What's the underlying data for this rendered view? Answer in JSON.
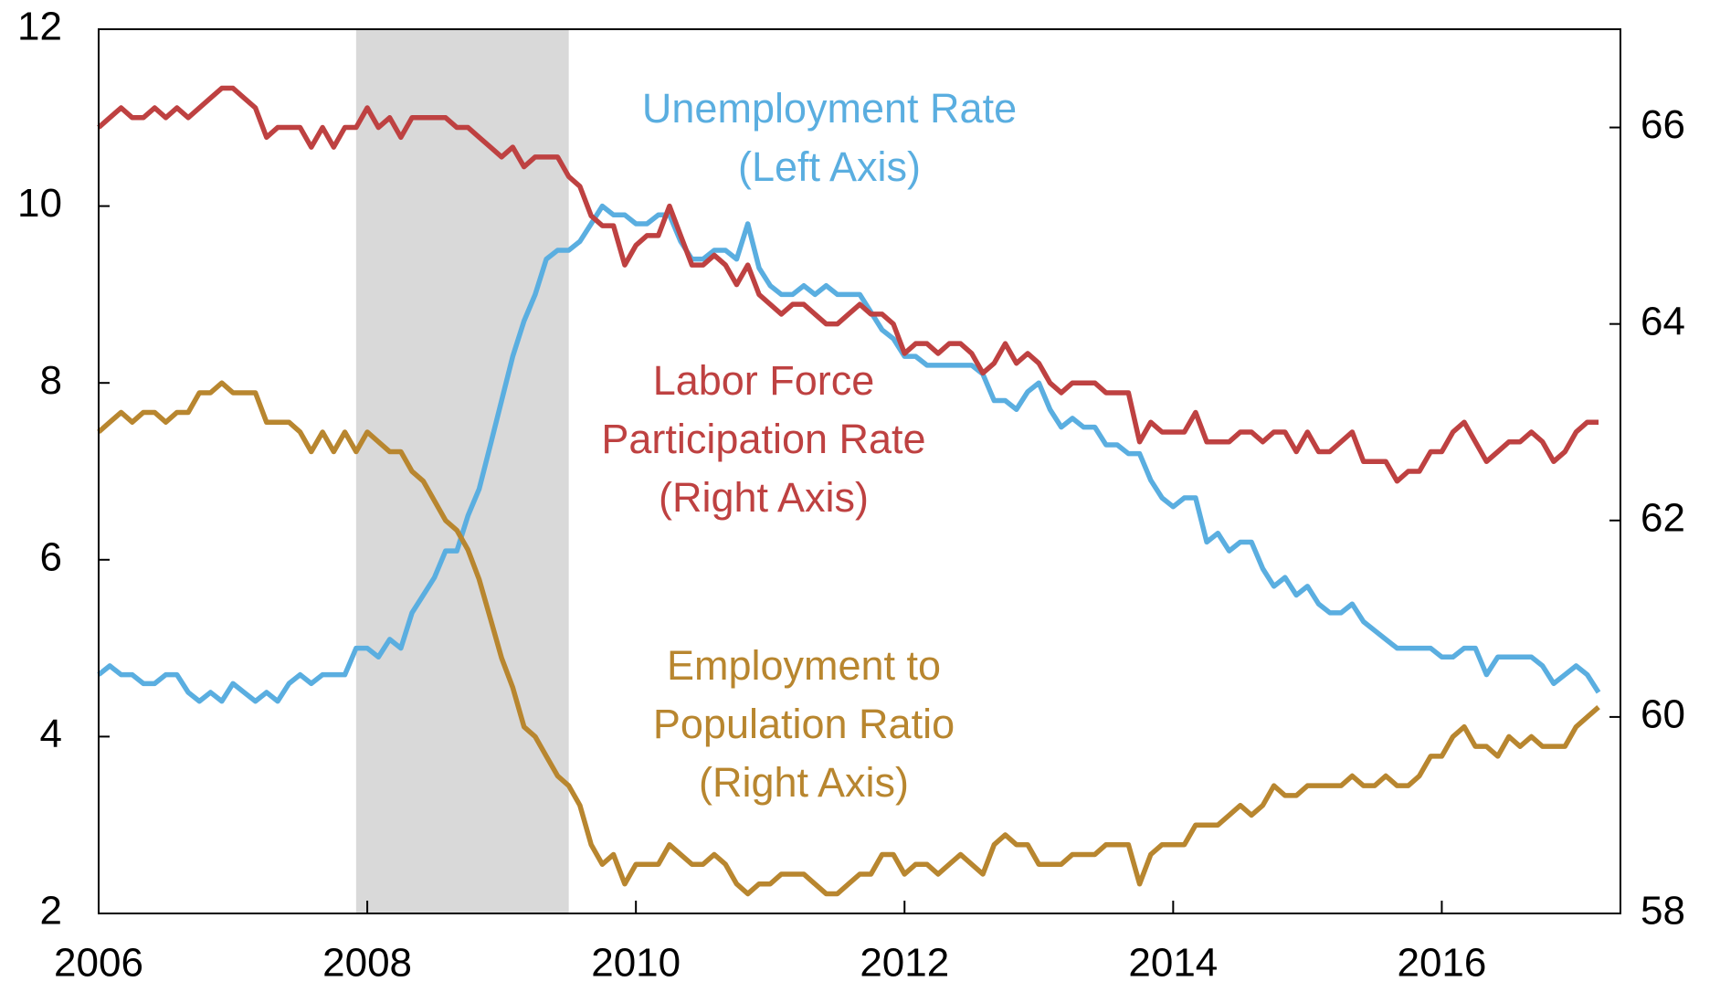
{
  "chart_data": {
    "type": "line",
    "x": [
      2006,
      2006.083,
      2006.167,
      2006.25,
      2006.333,
      2006.417,
      2006.5,
      2006.583,
      2006.667,
      2006.75,
      2006.833,
      2006.917,
      2007,
      2007.083,
      2007.167,
      2007.25,
      2007.333,
      2007.417,
      2007.5,
      2007.583,
      2007.667,
      2007.75,
      2007.833,
      2007.917,
      2008,
      2008.083,
      2008.167,
      2008.25,
      2008.333,
      2008.417,
      2008.5,
      2008.583,
      2008.667,
      2008.75,
      2008.833,
      2008.917,
      2009,
      2009.083,
      2009.167,
      2009.25,
      2009.333,
      2009.417,
      2009.5,
      2009.583,
      2009.667,
      2009.75,
      2009.833,
      2009.917,
      2010,
      2010.083,
      2010.167,
      2010.25,
      2010.333,
      2010.417,
      2010.5,
      2010.583,
      2010.667,
      2010.75,
      2010.833,
      2010.917,
      2011,
      2011.083,
      2011.167,
      2011.25,
      2011.333,
      2011.417,
      2011.5,
      2011.583,
      2011.667,
      2011.75,
      2011.833,
      2011.917,
      2012,
      2012.083,
      2012.167,
      2012.25,
      2012.333,
      2012.417,
      2012.5,
      2012.583,
      2012.667,
      2012.75,
      2012.833,
      2012.917,
      2013,
      2013.083,
      2013.167,
      2013.25,
      2013.333,
      2013.417,
      2013.5,
      2013.583,
      2013.667,
      2013.75,
      2013.833,
      2013.917,
      2014,
      2014.083,
      2014.167,
      2014.25,
      2014.333,
      2014.417,
      2014.5,
      2014.583,
      2014.667,
      2014.75,
      2014.833,
      2014.917,
      2015,
      2015.083,
      2015.167,
      2015.25,
      2015.333,
      2015.417,
      2015.5,
      2015.583,
      2015.667,
      2015.75,
      2015.833,
      2015.917,
      2016,
      2016.083,
      2016.167,
      2016.25,
      2016.333,
      2016.417,
      2016.5,
      2016.583,
      2016.667,
      2016.75,
      2016.833,
      2016.917,
      2017,
      2017.083,
      2017.167
    ],
    "series": [
      {
        "name": "Unemployment Rate",
        "color": "#5aaee0",
        "axis": "y",
        "values": [
          4.7,
          4.8,
          4.7,
          4.7,
          4.6,
          4.6,
          4.7,
          4.7,
          4.5,
          4.4,
          4.5,
          4.4,
          4.6,
          4.5,
          4.4,
          4.5,
          4.4,
          4.6,
          4.7,
          4.6,
          4.7,
          4.7,
          4.7,
          5.0,
          5.0,
          4.9,
          5.1,
          5.0,
          5.4,
          5.6,
          5.8,
          6.1,
          6.1,
          6.5,
          6.8,
          7.3,
          7.8,
          8.3,
          8.7,
          9.0,
          9.4,
          9.5,
          9.5,
          9.6,
          9.8,
          10.0,
          9.9,
          9.9,
          9.8,
          9.8,
          9.9,
          9.9,
          9.6,
          9.4,
          9.4,
          9.5,
          9.5,
          9.4,
          9.8,
          9.3,
          9.1,
          9.0,
          9.0,
          9.1,
          9.0,
          9.1,
          9.0,
          9.0,
          9.0,
          8.8,
          8.6,
          8.5,
          8.3,
          8.3,
          8.2,
          8.2,
          8.2,
          8.2,
          8.2,
          8.1,
          7.8,
          7.8,
          7.7,
          7.9,
          8.0,
          7.7,
          7.5,
          7.6,
          7.5,
          7.5,
          7.3,
          7.3,
          7.2,
          7.2,
          6.9,
          6.7,
          6.6,
          6.7,
          6.7,
          6.2,
          6.3,
          6.1,
          6.2,
          6.2,
          5.9,
          5.7,
          5.8,
          5.6,
          5.7,
          5.5,
          5.4,
          5.4,
          5.5,
          5.3,
          5.2,
          5.1,
          5.0,
          5.0,
          5.0,
          5.0,
          4.9,
          4.9,
          5.0,
          5.0,
          4.7,
          4.9,
          4.9,
          4.9,
          4.9,
          4.8,
          4.6,
          4.7,
          4.8,
          4.7,
          4.5
        ]
      },
      {
        "name": "Labor Force Participation Rate",
        "color": "#be4141",
        "axis": "y2",
        "values": [
          66.0,
          66.1,
          66.2,
          66.1,
          66.1,
          66.2,
          66.1,
          66.2,
          66.1,
          66.2,
          66.3,
          66.4,
          66.4,
          66.3,
          66.2,
          65.9,
          66.0,
          66.0,
          66.0,
          65.8,
          66.0,
          65.8,
          66.0,
          66.0,
          66.2,
          66.0,
          66.1,
          65.9,
          66.1,
          66.1,
          66.1,
          66.1,
          66.0,
          66.0,
          65.9,
          65.8,
          65.7,
          65.8,
          65.6,
          65.7,
          65.7,
          65.7,
          65.5,
          65.4,
          65.1,
          65.0,
          65.0,
          64.6,
          64.8,
          64.9,
          64.9,
          65.2,
          64.9,
          64.6,
          64.6,
          64.7,
          64.6,
          64.4,
          64.6,
          64.3,
          64.2,
          64.1,
          64.2,
          64.2,
          64.1,
          64.0,
          64.0,
          64.1,
          64.2,
          64.1,
          64.1,
          64.0,
          63.7,
          63.8,
          63.8,
          63.7,
          63.8,
          63.8,
          63.7,
          63.5,
          63.6,
          63.8,
          63.6,
          63.7,
          63.6,
          63.4,
          63.3,
          63.4,
          63.4,
          63.4,
          63.3,
          63.3,
          63.3,
          62.8,
          63.0,
          62.9,
          62.9,
          62.9,
          63.1,
          62.8,
          62.8,
          62.8,
          62.9,
          62.9,
          62.8,
          62.9,
          62.9,
          62.7,
          62.9,
          62.7,
          62.7,
          62.8,
          62.9,
          62.6,
          62.6,
          62.6,
          62.4,
          62.5,
          62.5,
          62.7,
          62.7,
          62.9,
          63.0,
          62.8,
          62.6,
          62.7,
          62.8,
          62.8,
          62.9,
          62.8,
          62.6,
          62.7,
          62.9,
          63.0,
          63.0
        ]
      },
      {
        "name": "Employment to Population Ratio",
        "color": "#b8862f",
        "axis": "y2",
        "values": [
          62.9,
          63.0,
          63.1,
          63.0,
          63.1,
          63.1,
          63.0,
          63.1,
          63.1,
          63.3,
          63.3,
          63.4,
          63.3,
          63.3,
          63.3,
          63.0,
          63.0,
          63.0,
          62.9,
          62.7,
          62.9,
          62.7,
          62.9,
          62.7,
          62.9,
          62.8,
          62.7,
          62.7,
          62.5,
          62.4,
          62.2,
          62.0,
          61.9,
          61.7,
          61.4,
          61.0,
          60.6,
          60.3,
          59.9,
          59.8,
          59.6,
          59.4,
          59.3,
          59.1,
          58.7,
          58.5,
          58.6,
          58.3,
          58.5,
          58.5,
          58.5,
          58.7,
          58.6,
          58.5,
          58.5,
          58.6,
          58.5,
          58.3,
          58.2,
          58.3,
          58.3,
          58.4,
          58.4,
          58.4,
          58.3,
          58.2,
          58.2,
          58.3,
          58.4,
          58.4,
          58.6,
          58.6,
          58.4,
          58.5,
          58.5,
          58.4,
          58.5,
          58.6,
          58.5,
          58.4,
          58.7,
          58.8,
          58.7,
          58.7,
          58.5,
          58.5,
          58.5,
          58.6,
          58.6,
          58.6,
          58.7,
          58.7,
          58.7,
          58.3,
          58.6,
          58.7,
          58.7,
          58.7,
          58.9,
          58.9,
          58.9,
          59.0,
          59.1,
          59.0,
          59.1,
          59.3,
          59.2,
          59.2,
          59.3,
          59.3,
          59.3,
          59.3,
          59.4,
          59.3,
          59.3,
          59.4,
          59.3,
          59.3,
          59.4,
          59.6,
          59.6,
          59.8,
          59.9,
          59.7,
          59.7,
          59.6,
          59.8,
          59.7,
          59.8,
          59.7,
          59.7,
          59.7,
          59.9,
          60.0,
          60.1
        ]
      }
    ],
    "annotations": [
      {
        "lines": [
          "Unemployment Rate",
          "(Left Axis)"
        ]
      },
      {
        "lines": [
          "Labor Force",
          "Participation Rate",
          "(Right Axis)"
        ]
      },
      {
        "lines": [
          "Employment to",
          "Population Ratio",
          "(Right Axis)"
        ]
      }
    ],
    "shaded_region": [
      2007.917,
      2009.5
    ],
    "xlim": [
      2006,
      2017.33
    ],
    "xticks": [
      2006,
      2008,
      2010,
      2012,
      2014,
      2016
    ],
    "ylim": [
      2,
      12
    ],
    "yticks": [
      2,
      4,
      6,
      8,
      10,
      12
    ],
    "y2lim": [
      58,
      67
    ],
    "y2ticks": [
      58,
      60,
      62,
      64,
      66
    ],
    "grid": false
  }
}
